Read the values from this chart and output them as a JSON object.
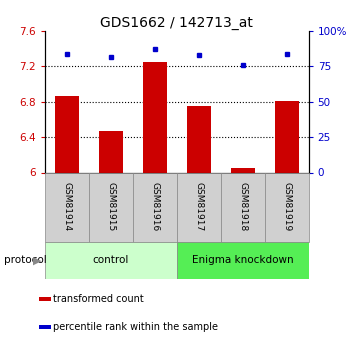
{
  "title": "GDS1662 / 142713_at",
  "samples": [
    "GSM81914",
    "GSM81915",
    "GSM81916",
    "GSM81917",
    "GSM81918",
    "GSM81919"
  ],
  "red_values": [
    6.87,
    6.47,
    7.25,
    6.75,
    6.05,
    6.81
  ],
  "blue_values": [
    84,
    82,
    87,
    83,
    76,
    84
  ],
  "ylim_left": [
    6.0,
    7.6
  ],
  "ylim_right": [
    0,
    100
  ],
  "yticks_left": [
    6.0,
    6.4,
    6.8,
    7.2,
    7.6
  ],
  "ytick_labels_left": [
    "6",
    "6.4",
    "6.8",
    "7.2",
    "7.6"
  ],
  "yticks_right": [
    0,
    25,
    50,
    75,
    100
  ],
  "ytick_labels_right": [
    "0",
    "25",
    "50",
    "75",
    "100%"
  ],
  "grid_lines": [
    6.4,
    6.8,
    7.2
  ],
  "bar_color": "#cc0000",
  "dot_color": "#0000cc",
  "bar_bottom": 6.0,
  "groups": [
    {
      "label": "control",
      "start": 0,
      "end": 3,
      "color": "#ccffcc"
    },
    {
      "label": "Enigma knockdown",
      "start": 3,
      "end": 6,
      "color": "#55ee55"
    }
  ],
  "protocol_label": "protocol",
  "legend_items": [
    {
      "color": "#cc0000",
      "label": "transformed count"
    },
    {
      "color": "#0000cc",
      "label": "percentile rank within the sample"
    }
  ],
  "title_fontsize": 10,
  "axis_label_color_left": "#cc0000",
  "axis_label_color_right": "#0000cc",
  "tick_label_fontsize": 7.5,
  "sample_fontsize": 6.5
}
